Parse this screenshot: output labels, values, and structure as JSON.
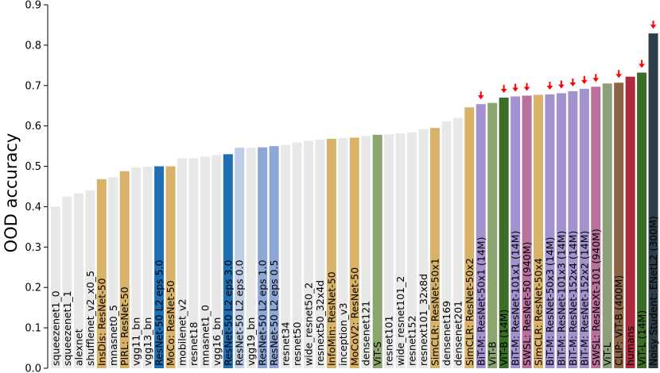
{
  "chart_data": {
    "type": "bar",
    "ylabel": "OOD accuracy",
    "xlabel": "",
    "title": "",
    "ylim": [
      0.0,
      0.9
    ],
    "yticks": [
      "0.0",
      "0.1",
      "0.2",
      "0.3",
      "0.4",
      "0.5",
      "0.6",
      "0.7",
      "0.8",
      "0.9"
    ],
    "grid": false,
    "legend": "none",
    "colors": {
      "gray": "#e8e8e8",
      "gold": "#d9b26a",
      "blue_dark": "#1f6fb2",
      "blue_light": "#bfcce6",
      "blue_mid": "#8fa7d4",
      "green_light": "#8ca56e",
      "purple": "#a492cf",
      "green_dark": "#3a6e27",
      "pink": "#b7719c",
      "olive": "#8ea07a",
      "brown": "#8c6446",
      "crimson": "#b02a3e",
      "navy": "#2d3d4a",
      "arrow": "#ff0000"
    },
    "bars": [
      {
        "label": "squeezenet1_0",
        "value": 0.4,
        "color": "gray",
        "arrow": false
      },
      {
        "label": "squeezenet1_1",
        "value": 0.425,
        "color": "gray",
        "arrow": false
      },
      {
        "label": "alexnet",
        "value": 0.433,
        "color": "gray",
        "arrow": false
      },
      {
        "label": "shufflenet_v2_x0_5",
        "value": 0.44,
        "color": "gray",
        "arrow": false
      },
      {
        "label": "InsDis: ResNet-50",
        "value": 0.468,
        "color": "gold",
        "arrow": false
      },
      {
        "label": "mnasnet0_5",
        "value": 0.473,
        "color": "gray",
        "arrow": false
      },
      {
        "label": "PIRL: ResNet-50",
        "value": 0.488,
        "color": "gold",
        "arrow": false
      },
      {
        "label": "vgg11_bn",
        "value": 0.497,
        "color": "gray",
        "arrow": false
      },
      {
        "label": "vgg13_bn",
        "value": 0.499,
        "color": "gray",
        "arrow": false
      },
      {
        "label": "ResNet-50 L2 eps 5.0",
        "value": 0.5,
        "color": "blue_dark",
        "arrow": false
      },
      {
        "label": "MoCo: ResNet-50",
        "value": 0.5,
        "color": "gold",
        "arrow": false
      },
      {
        "label": "mobilenet_v2",
        "value": 0.52,
        "color": "gray",
        "arrow": false
      },
      {
        "label": "resnet18",
        "value": 0.52,
        "color": "gray",
        "arrow": false
      },
      {
        "label": "mnasnet1_0",
        "value": 0.524,
        "color": "gray",
        "arrow": false
      },
      {
        "label": "vgg16_bn",
        "value": 0.528,
        "color": "gray",
        "arrow": false
      },
      {
        "label": "ResNet-50 L2 eps 3.0",
        "value": 0.53,
        "color": "blue_dark",
        "arrow": false
      },
      {
        "label": "ResNet-50 L2 eps 0.0",
        "value": 0.546,
        "color": "blue_light",
        "arrow": false
      },
      {
        "label": "vgg19_bn",
        "value": 0.546,
        "color": "gray",
        "arrow": false
      },
      {
        "label": "ResNet-50 L2 eps 1.0",
        "value": 0.547,
        "color": "blue_mid",
        "arrow": false
      },
      {
        "label": "ResNet-50 L2 eps 0.5",
        "value": 0.55,
        "color": "blue_mid",
        "arrow": false
      },
      {
        "label": "resnet34",
        "value": 0.553,
        "color": "gray",
        "arrow": false
      },
      {
        "label": "resnet50",
        "value": 0.559,
        "color": "gray",
        "arrow": false
      },
      {
        "label": "wide_resnet50_2",
        "value": 0.563,
        "color": "gray",
        "arrow": false
      },
      {
        "label": "resnext50_32x4d",
        "value": 0.566,
        "color": "gray",
        "arrow": false
      },
      {
        "label": "InfoMin: ResNet-50",
        "value": 0.568,
        "color": "gold",
        "arrow": false
      },
      {
        "label": "inception_v3",
        "value": 0.57,
        "color": "gray",
        "arrow": false
      },
      {
        "label": "MoCoV2: ResNet-50",
        "value": 0.571,
        "color": "gold",
        "arrow": false
      },
      {
        "label": "densenet121",
        "value": 0.575,
        "color": "gray",
        "arrow": false
      },
      {
        "label": "ViT-S",
        "value": 0.578,
        "color": "green_light",
        "arrow": false
      },
      {
        "label": "resnet101",
        "value": 0.579,
        "color": "gray",
        "arrow": false
      },
      {
        "label": "wide_resnet101_2",
        "value": 0.582,
        "color": "gray",
        "arrow": false
      },
      {
        "label": "resnet152",
        "value": 0.584,
        "color": "gray",
        "arrow": false
      },
      {
        "label": "resnext101_32x8d",
        "value": 0.592,
        "color": "gray",
        "arrow": false
      },
      {
        "label": "SimCLR: ResNet-50x1",
        "value": 0.595,
        "color": "gold",
        "arrow": false
      },
      {
        "label": "densenet169",
        "value": 0.611,
        "color": "gray",
        "arrow": false
      },
      {
        "label": "densenet201",
        "value": 0.62,
        "color": "gray",
        "arrow": false
      },
      {
        "label": "SimCLR: ResNet-50x2",
        "value": 0.646,
        "color": "gold",
        "arrow": false
      },
      {
        "label": "BiT-M: ResNet-50x1 (14M)",
        "value": 0.654,
        "color": "purple",
        "arrow": true
      },
      {
        "label": "ViT-B",
        "value": 0.657,
        "color": "green_light",
        "arrow": false
      },
      {
        "label": "ViT-B (14M)",
        "value": 0.67,
        "color": "green_dark",
        "arrow": true
      },
      {
        "label": "BiT-M: ResNet-101x1 (14M)",
        "value": 0.673,
        "color": "purple",
        "arrow": true
      },
      {
        "label": "SWSL: ResNet-50 (940M)",
        "value": 0.675,
        "color": "pink",
        "arrow": true
      },
      {
        "label": "SimCLR: ResNet-50x4",
        "value": 0.677,
        "color": "gold",
        "arrow": false
      },
      {
        "label": "BiT-M: ResNet-50x3 (14M)",
        "value": 0.678,
        "color": "purple",
        "arrow": true
      },
      {
        "label": "BiT-M: ResNet-101x3 (14M)",
        "value": 0.681,
        "color": "purple",
        "arrow": true
      },
      {
        "label": "BiT-M: ResNet-152x4 (14M)",
        "value": 0.686,
        "color": "purple",
        "arrow": true
      },
      {
        "label": "BiT-M: ResNet-152x2 (14M)",
        "value": 0.692,
        "color": "purple",
        "arrow": true
      },
      {
        "label": "SWSL: ResNeXt-101 (940M)",
        "value": 0.697,
        "color": "pink",
        "arrow": true
      },
      {
        "label": "ViT-L",
        "value": 0.705,
        "color": "olive",
        "arrow": false
      },
      {
        "label": "CLIP: ViT-B (400M)",
        "value": 0.707,
        "color": "brown",
        "arrow": true
      },
      {
        "label": "humans",
        "value": 0.722,
        "color": "crimson",
        "arrow": false
      },
      {
        "label": "ViT-L (14M)",
        "value": 0.732,
        "color": "green_dark",
        "arrow": true
      },
      {
        "label": "Noisy Student: ENetL2 (300M)",
        "value": 0.829,
        "color": "navy",
        "arrow": true
      }
    ]
  }
}
